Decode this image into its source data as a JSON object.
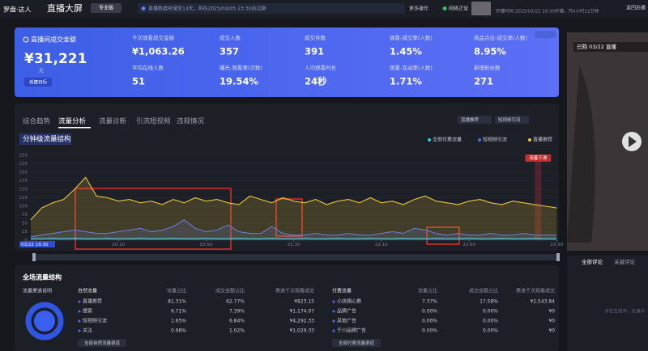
{
  "header": {
    "logo": "罗盘·达人",
    "title": "直播大屏",
    "edition": "专业版",
    "notice": "直播数据存储至14天，将在2025/04/05 23:30后过期",
    "more": "更多操作",
    "network": "网络正常",
    "live_time": "开播时间 2025/03/22 19:30开播，共4小时11分钟",
    "back": "返回后播"
  },
  "summary": {
    "label": "直播间成交金额",
    "value": "¥31,221",
    "unit": "元",
    "button": "创建目标",
    "metrics": [
      {
        "label": "千次观看成交金额",
        "value": "¥1,063.26"
      },
      {
        "label": "成交人数",
        "value": "357"
      },
      {
        "label": "成交件数",
        "value": "391"
      },
      {
        "label": "观看-成交率(人数)",
        "value": "1.45%"
      },
      {
        "label": "商品点击-成交率(人数)",
        "value": "8.95%"
      },
      {
        "label": "平均在线人数",
        "value": "51"
      },
      {
        "label": "曝光-观看率(次数)",
        "value": "19.54%"
      },
      {
        "label": "人均观看时长",
        "value": "24秒"
      },
      {
        "label": "观看-互动率(人数)",
        "value": "1.71%"
      },
      {
        "label": "新增粉丝数",
        "value": "271"
      }
    ]
  },
  "tabs": [
    "综合趋势",
    "流量分析",
    "流量诊断",
    "引流短视频",
    "违规情况"
  ],
  "active_tab": 1,
  "filters": [
    "直播推荐",
    "短视频引流"
  ],
  "chart_data": {
    "type": "line",
    "title": "分钟级流量结构",
    "annotation": "流量下滑",
    "x": [
      0,
      5,
      10,
      15,
      20,
      25,
      30,
      35,
      40,
      45,
      50,
      55,
      60,
      65,
      70,
      75,
      80,
      85,
      90,
      95,
      100,
      105,
      110,
      115,
      120,
      125,
      130,
      135,
      140,
      145,
      150,
      155,
      160,
      165,
      170,
      175,
      180,
      185,
      190,
      195,
      200,
      205,
      210,
      215,
      220,
      225,
      230,
      235,
      240
    ],
    "xlim": [
      0,
      241
    ],
    "xticks": [
      {
        "value": 0,
        "label": "03/22 19:30"
      },
      {
        "value": 40,
        "label": "20:10"
      },
      {
        "value": 80,
        "label": "20:50"
      },
      {
        "value": 120,
        "label": "21:30"
      },
      {
        "value": 160,
        "label": "22:10"
      },
      {
        "value": 200,
        "label": "22:50"
      },
      {
        "value": 240,
        "label": "23:30"
      }
    ],
    "ylim": [
      0,
      250
    ],
    "yticks": [
      0,
      25,
      50,
      75,
      100,
      125,
      150,
      175,
      200,
      225,
      250
    ],
    "grid": true,
    "series": [
      {
        "name": "全部付费流量",
        "color": "#35c6e8",
        "values": [
          5,
          5,
          6,
          5,
          6,
          5,
          5,
          6,
          5,
          5,
          6,
          5,
          5,
          6,
          5,
          5,
          6,
          5,
          5,
          6,
          5,
          5,
          6,
          5,
          5,
          6,
          5,
          5,
          6,
          5,
          5,
          6,
          5,
          5,
          6,
          5,
          5,
          6,
          5,
          5,
          6,
          5,
          5,
          6,
          5,
          5,
          6,
          5,
          5
        ]
      },
      {
        "name": "短视频引流",
        "color": "#4f6cf0",
        "values": [
          10,
          15,
          20,
          25,
          30,
          25,
          20,
          20,
          25,
          30,
          35,
          25,
          30,
          40,
          60,
          35,
          25,
          30,
          45,
          25,
          20,
          20,
          40,
          20,
          15,
          15,
          20,
          15,
          15,
          20,
          15,
          15,
          20,
          25,
          20,
          35,
          30,
          20,
          15,
          20,
          15,
          15,
          20,
          15,
          15,
          20,
          15,
          15,
          15
        ]
      },
      {
        "name": "直播推荐",
        "color": "#e8c53a",
        "values": [
          60,
          95,
          110,
          120,
          150,
          185,
          130,
          125,
          115,
          120,
          110,
          115,
          105,
          120,
          110,
          125,
          115,
          120,
          110,
          105,
          130,
          120,
          110,
          125,
          115,
          110,
          120,
          105,
          115,
          120,
          110,
          125,
          110,
          115,
          105,
          120,
          130,
          115,
          110,
          105,
          115,
          120,
          110,
          105,
          115,
          110,
          105,
          100,
          95
        ]
      }
    ]
  },
  "traffic": {
    "title": "全场流量结构",
    "help": "流量渠道说明",
    "tables": [
      {
        "columns": [
          "自然流量",
          "流量占比",
          "成交金额占比",
          "渠道千次观看成交"
        ],
        "rows": [
          [
            "直播推荐",
            "81.31%",
            "62.77%",
            "¥823.15"
          ],
          [
            "搜索",
            "6.71%",
            "7.39%",
            "¥1,174.07"
          ],
          [
            "短视频引流",
            "1.65%",
            "6.84%",
            "¥4,292.33"
          ],
          [
            "关注",
            "0.98%",
            "1.02%",
            "¥1,029.33"
          ]
        ],
        "button": "全部自然流量渠道"
      },
      {
        "columns": [
          "付费流量",
          "流量占比",
          "成交金额占比",
          "渠道千次观看成交"
        ],
        "rows": [
          [
            "小店随心推",
            "7.37%",
            "17.58%",
            "¥2,543.84"
          ],
          [
            "品牌广告",
            "0.00%",
            "0.00%",
            "¥0"
          ],
          [
            "其他广告",
            "0.00%",
            "0.00%",
            "¥0"
          ],
          [
            "千川品牌广告",
            "0.00%",
            "0.00%",
            "¥0"
          ]
        ],
        "button": "全部付费流量渠道"
      }
    ]
  },
  "comments": {
    "live_tag": "已购 03/22 直播",
    "tabs": [
      "全部评论",
      "关键评论"
    ],
    "placeholder": "评论生成中，先演示"
  }
}
